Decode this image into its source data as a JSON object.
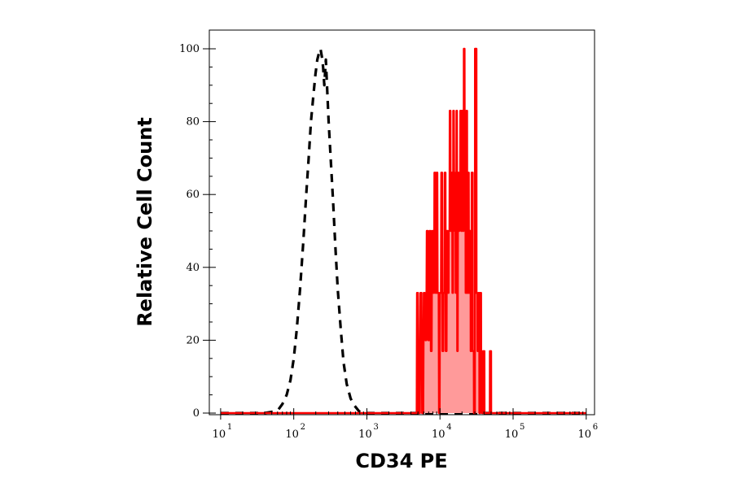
{
  "chart_data": {
    "type": "line",
    "title": "",
    "xlabel": "CD34 PE",
    "ylabel": "Relative Cell Count",
    "x_scale": "log",
    "xlim": [
      7,
      1300000
    ],
    "ylim": [
      0,
      105
    ],
    "grid": false,
    "legend": "none",
    "x_ticks": [
      {
        "value": 10,
        "base": "10",
        "exp": "1"
      },
      {
        "value": 100,
        "base": "10",
        "exp": "2"
      },
      {
        "value": 1000,
        "base": "10",
        "exp": "3"
      },
      {
        "value": 10000,
        "base": "10",
        "exp": "4"
      },
      {
        "value": 100000,
        "base": "10",
        "exp": "5"
      },
      {
        "value": 1000000,
        "base": "10",
        "exp": "6"
      }
    ],
    "y_ticks": [
      {
        "value": 0,
        "label": "0"
      },
      {
        "value": 20,
        "label": "20"
      },
      {
        "value": 40,
        "label": "40"
      },
      {
        "value": 60,
        "label": "60"
      },
      {
        "value": 80,
        "label": "80"
      },
      {
        "value": 100,
        "label": "100"
      }
    ],
    "series": [
      {
        "style": "dashed",
        "color": "#000000",
        "fill": "none",
        "points": [
          [
            10,
            0
          ],
          [
            40,
            0
          ],
          [
            55,
            0.5
          ],
          [
            62,
            1
          ],
          [
            70,
            2.5
          ],
          [
            80,
            5
          ],
          [
            90,
            9
          ],
          [
            100,
            15
          ],
          [
            110,
            23
          ],
          [
            122,
            34
          ],
          [
            135,
            47
          ],
          [
            148,
            60
          ],
          [
            160,
            70
          ],
          [
            172,
            80
          ],
          [
            185,
            87
          ],
          [
            198,
            93
          ],
          [
            210,
            97
          ],
          [
            222,
            99
          ],
          [
            232,
            100
          ],
          [
            242,
            98
          ],
          [
            252,
            95
          ],
          [
            262,
            90
          ],
          [
            275,
            97
          ],
          [
            288,
            88
          ],
          [
            300,
            80
          ],
          [
            320,
            70
          ],
          [
            345,
            58
          ],
          [
            370,
            46
          ],
          [
            400,
            34
          ],
          [
            440,
            23
          ],
          [
            480,
            14
          ],
          [
            530,
            8
          ],
          [
            600,
            4
          ],
          [
            680,
            2
          ],
          [
            780,
            0.5
          ],
          [
            900,
            0
          ],
          [
            1000000,
            0
          ]
        ]
      },
      {
        "style": "solid",
        "color": "#ff0000",
        "fill": "#ff9a9a",
        "points": [
          [
            10,
            0
          ],
          [
            4800,
            0
          ],
          [
            4850,
            33
          ],
          [
            5000,
            33
          ],
          [
            5100,
            0
          ],
          [
            5300,
            0
          ],
          [
            5400,
            33
          ],
          [
            5600,
            33
          ],
          [
            5700,
            0
          ],
          [
            5900,
            0
          ],
          [
            6000,
            33
          ],
          [
            6200,
            33
          ],
          [
            6300,
            20
          ],
          [
            6500,
            20
          ],
          [
            6600,
            50
          ],
          [
            6800,
            50
          ],
          [
            6900,
            20
          ],
          [
            7100,
            20
          ],
          [
            7200,
            50
          ],
          [
            7400,
            50
          ],
          [
            7500,
            17
          ],
          [
            7700,
            17
          ],
          [
            7800,
            50
          ],
          [
            8000,
            50
          ],
          [
            8100,
            33
          ],
          [
            8300,
            33
          ],
          [
            8400,
            66
          ],
          [
            8600,
            66
          ],
          [
            8700,
            33
          ],
          [
            8900,
            33
          ],
          [
            9000,
            66
          ],
          [
            9200,
            66
          ],
          [
            9300,
            33
          ],
          [
            9600,
            33
          ],
          [
            9700,
            0
          ],
          [
            9900,
            0
          ],
          [
            10000,
            33
          ],
          [
            10300,
            33
          ],
          [
            10400,
            66
          ],
          [
            10700,
            66
          ],
          [
            10800,
            17
          ],
          [
            11100,
            17
          ],
          [
            11200,
            33
          ],
          [
            11500,
            33
          ],
          [
            11600,
            66
          ],
          [
            11900,
            66
          ],
          [
            12000,
            17
          ],
          [
            12300,
            17
          ],
          [
            12400,
            50
          ],
          [
            12700,
            50
          ],
          [
            12800,
            33
          ],
          [
            13100,
            33
          ],
          [
            13200,
            50
          ],
          [
            13500,
            50
          ],
          [
            13600,
            83
          ],
          [
            13900,
            83
          ],
          [
            14000,
            50
          ],
          [
            14300,
            50
          ],
          [
            14400,
            66
          ],
          [
            14700,
            66
          ],
          [
            14800,
            33
          ],
          [
            15100,
            33
          ],
          [
            15200,
            83
          ],
          [
            15500,
            83
          ],
          [
            15600,
            66
          ],
          [
            15900,
            66
          ],
          [
            16000,
            50
          ],
          [
            16300,
            50
          ],
          [
            16400,
            33
          ],
          [
            16700,
            33
          ],
          [
            16800,
            83
          ],
          [
            17100,
            83
          ],
          [
            17200,
            17
          ],
          [
            17500,
            17
          ],
          [
            17600,
            66
          ],
          [
            17900,
            66
          ],
          [
            18000,
            50
          ],
          [
            18400,
            50
          ],
          [
            18500,
            66
          ],
          [
            18900,
            66
          ],
          [
            19000,
            83
          ],
          [
            19400,
            83
          ],
          [
            19500,
            50
          ],
          [
            19900,
            50
          ],
          [
            20000,
            83
          ],
          [
            20500,
            83
          ],
          [
            20600,
            50
          ],
          [
            21100,
            50
          ],
          [
            21200,
            100
          ],
          [
            21700,
            100
          ],
          [
            21800,
            66
          ],
          [
            22300,
            66
          ],
          [
            22400,
            33
          ],
          [
            22900,
            33
          ],
          [
            23000,
            83
          ],
          [
            23500,
            83
          ],
          [
            23600,
            33
          ],
          [
            24100,
            33
          ],
          [
            24200,
            66
          ],
          [
            24800,
            66
          ],
          [
            24900,
            33
          ],
          [
            25500,
            33
          ],
          [
            25600,
            50
          ],
          [
            26200,
            50
          ],
          [
            26300,
            17
          ],
          [
            27000,
            17
          ],
          [
            27100,
            66
          ],
          [
            28000,
            66
          ],
          [
            28100,
            17
          ],
          [
            29000,
            17
          ],
          [
            29100,
            0
          ],
          [
            30000,
            0
          ],
          [
            30100,
            100
          ],
          [
            31500,
            100
          ],
          [
            31600,
            33
          ],
          [
            32500,
            33
          ],
          [
            32600,
            17
          ],
          [
            33500,
            17
          ],
          [
            33600,
            33
          ],
          [
            34500,
            33
          ],
          [
            34600,
            0
          ],
          [
            35500,
            0
          ],
          [
            35600,
            33
          ],
          [
            36500,
            33
          ],
          [
            36600,
            17
          ],
          [
            37500,
            17
          ],
          [
            37600,
            0
          ],
          [
            39000,
            0
          ],
          [
            39100,
            17
          ],
          [
            40500,
            17
          ],
          [
            40600,
            0
          ],
          [
            48000,
            0
          ],
          [
            48100,
            17
          ],
          [
            50000,
            17
          ],
          [
            50100,
            0
          ],
          [
            1000000,
            0
          ]
        ]
      }
    ]
  }
}
